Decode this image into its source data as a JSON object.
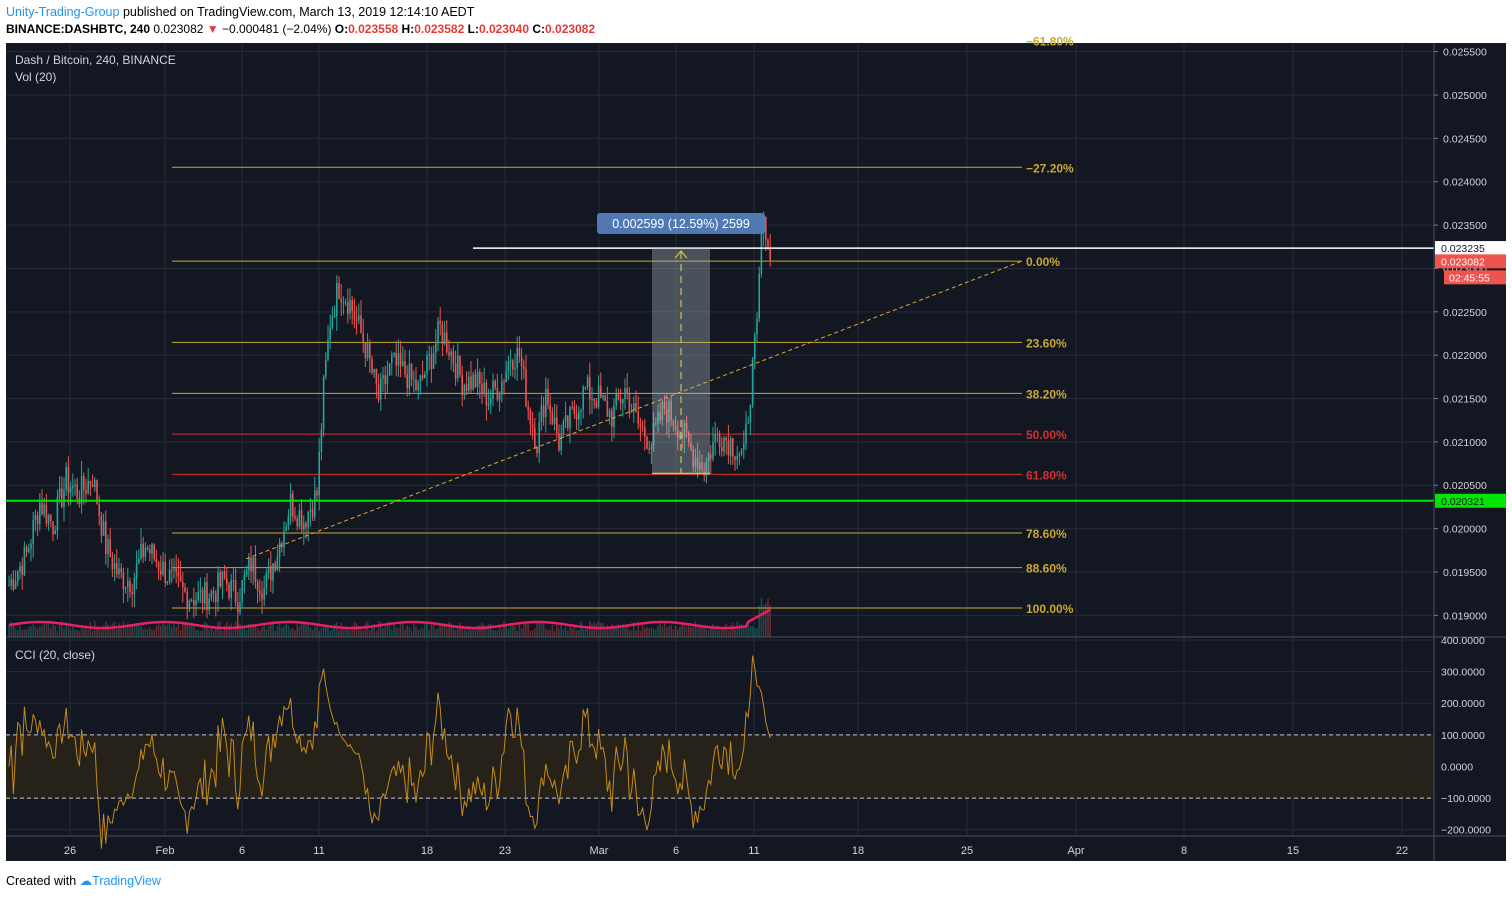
{
  "header": {
    "author": "Unity-Trading-Group",
    "published": "published on TradingView.com, March 13, 2019 12:14:10 AEDT",
    "symbol_line": "BINANCE:DASHBTC, 240",
    "last": "0.023082",
    "change": "−0.000481 (−2.04%)",
    "open_label": "O:",
    "open": "0.023558",
    "high_label": "H:",
    "high": "0.023582",
    "low_label": "L:",
    "low": "0.023040",
    "close_label": "C:",
    "close": "0.023082"
  },
  "legend": {
    "main": "Dash / Bitcoin, 240, BINANCE",
    "volume": "Vol (20)",
    "cci": "CCI (20, close)"
  },
  "footer": {
    "created": "Created with",
    "brand": "TradingView"
  },
  "colors": {
    "up": "#26a69a",
    "down": "#ef5350",
    "fib_yellow": "#c8a832",
    "fib_red": "#d32f2f",
    "green_line": "#00e600",
    "cci": "#c48a1b",
    "vol_ma": "#e91e63"
  },
  "chart_data": {
    "type": "candlestick",
    "title": "Dash / Bitcoin, 240, BINANCE",
    "price_axis_ticks": [
      "0.025500",
      "0.025000",
      "0.024500",
      "0.024000",
      "0.023500",
      "0.023000",
      "0.022500",
      "0.022000",
      "0.021500",
      "0.021000",
      "0.020500",
      "0.020000",
      "0.019500",
      "0.019000"
    ],
    "x_tick_labels": [
      "26",
      "Feb",
      "6",
      "11",
      "18",
      "23",
      "Mar",
      "6",
      "11",
      "18",
      "25",
      "Apr",
      "8",
      "15",
      "22"
    ],
    "ylim": [
      0.01875,
      0.0256
    ],
    "price_labels": {
      "white_line": "0.023235",
      "last_price": "0.023082",
      "countdown": "02:45:55",
      "green_line": "0.020321"
    },
    "fibonacci": [
      {
        "label": "−61.80%",
        "price": 0.02563
      },
      {
        "label": "−27.20%",
        "price": 0.024167
      },
      {
        "label": "0.00%",
        "price": 0.023085
      },
      {
        "label": "23.60%",
        "price": 0.022147
      },
      {
        "label": "38.20%",
        "price": 0.02156
      },
      {
        "label": "50.00%",
        "price": 0.02109
      },
      {
        "label": "61.80%",
        "price": 0.020625
      },
      {
        "label": "78.60%",
        "price": 0.01995
      },
      {
        "label": "88.60%",
        "price": 0.01955
      },
      {
        "label": "100.00%",
        "price": 0.019085
      }
    ],
    "measure_box": {
      "label": "0.002599 (12.59%) 2599",
      "from": 0.020636,
      "to": 0.023235
    },
    "waypoints": [
      [
        0,
        0.01935
      ],
      [
        8,
        0.0197
      ],
      [
        14,
        0.0203
      ],
      [
        20,
        0.02005
      ],
      [
        26,
        0.02055
      ],
      [
        32,
        0.0204
      ],
      [
        38,
        0.0206
      ],
      [
        44,
        0.0198
      ],
      [
        50,
        0.01945
      ],
      [
        56,
        0.0194
      ],
      [
        62,
        0.0198
      ],
      [
        68,
        0.0196
      ],
      [
        74,
        0.0194
      ],
      [
        80,
        0.01925
      ],
      [
        86,
        0.0192
      ],
      [
        92,
        0.01925
      ],
      [
        98,
        0.0194
      ],
      [
        104,
        0.0192
      ],
      [
        110,
        0.0196
      ],
      [
        116,
        0.0193
      ],
      [
        122,
        0.01975
      ],
      [
        128,
        0.0203
      ],
      [
        134,
        0.0201
      ],
      [
        140,
        0.0204
      ],
      [
        143,
        0.0216
      ],
      [
        146,
        0.0224
      ],
      [
        150,
        0.0228
      ],
      [
        155,
        0.0226
      ],
      [
        162,
        0.0221
      ],
      [
        168,
        0.0215
      ],
      [
        174,
        0.0219
      ],
      [
        180,
        0.0218
      ],
      [
        186,
        0.0216
      ],
      [
        192,
        0.022
      ],
      [
        196,
        0.0223
      ],
      [
        200,
        0.0221
      ],
      [
        206,
        0.0217
      ],
      [
        212,
        0.0217
      ],
      [
        218,
        0.0215
      ],
      [
        224,
        0.0217
      ],
      [
        228,
        0.022
      ],
      [
        232,
        0.022
      ],
      [
        236,
        0.0214
      ],
      [
        240,
        0.021
      ],
      [
        244,
        0.0216
      ],
      [
        250,
        0.021
      ],
      [
        256,
        0.0213
      ],
      [
        262,
        0.0216
      ],
      [
        268,
        0.0215
      ],
      [
        274,
        0.0213
      ],
      [
        280,
        0.0216
      ],
      [
        286,
        0.0212
      ],
      [
        292,
        0.021
      ],
      [
        298,
        0.0214
      ],
      [
        304,
        0.0212
      ],
      [
        310,
        0.0209
      ],
      [
        316,
        0.0207
      ],
      [
        322,
        0.0211
      ],
      [
        328,
        0.021
      ],
      [
        334,
        0.02082
      ],
      [
        337,
        0.0216
      ],
      [
        340,
        0.0223
      ],
      [
        342,
        0.0234
      ],
      [
        344,
        0.0235
      ],
      [
        346,
        0.02308
      ]
    ],
    "cci_axis_ticks": [
      "400.0000",
      "300.0000",
      "200.0000",
      "100.0000",
      "0.0000",
      "−100.0000",
      "−200.0000"
    ],
    "cci_bands": [
      100,
      -100
    ],
    "volume_series": "Vol (20)"
  }
}
